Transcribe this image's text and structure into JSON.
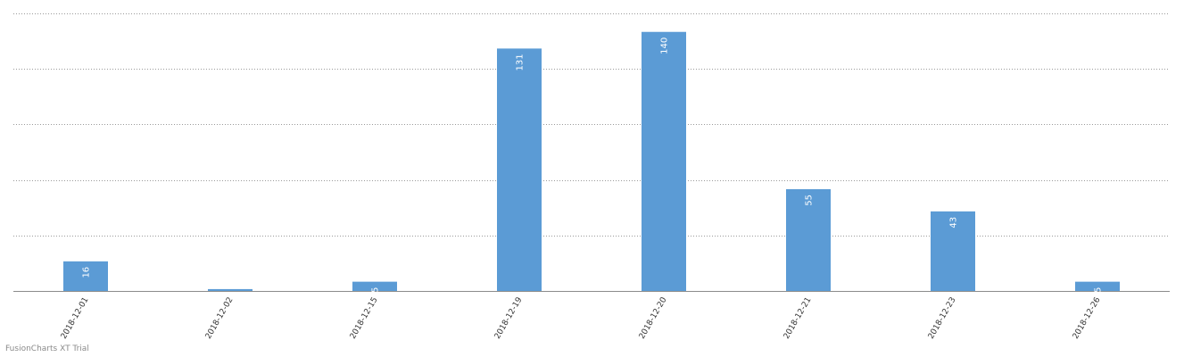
{
  "watermark": "FusionCharts XT Trial",
  "colors": {
    "bar": "#5b9bd5",
    "gridline": "#9a9a9a",
    "baseline": "#8c8c8c",
    "label": "#333333",
    "value_label": "#ffffff"
  },
  "chart_data": {
    "type": "bar",
    "title": "",
    "xlabel": "",
    "ylabel": "",
    "categories": [
      "2018-12-01",
      "2018-12-02",
      "2018-12-15",
      "2018-12-19",
      "2018-12-20",
      "2018-12-21",
      "2018-12-23",
      "2018-12-26"
    ],
    "values": [
      16,
      1,
      5,
      131,
      140,
      55,
      43,
      5
    ],
    "value_labels": [
      "16",
      "",
      "5",
      "131",
      "140",
      "55",
      "43",
      "5"
    ],
    "ylim": [
      0,
      150
    ],
    "grid": true,
    "legend": "none",
    "y_tick_labels_shown": false
  }
}
